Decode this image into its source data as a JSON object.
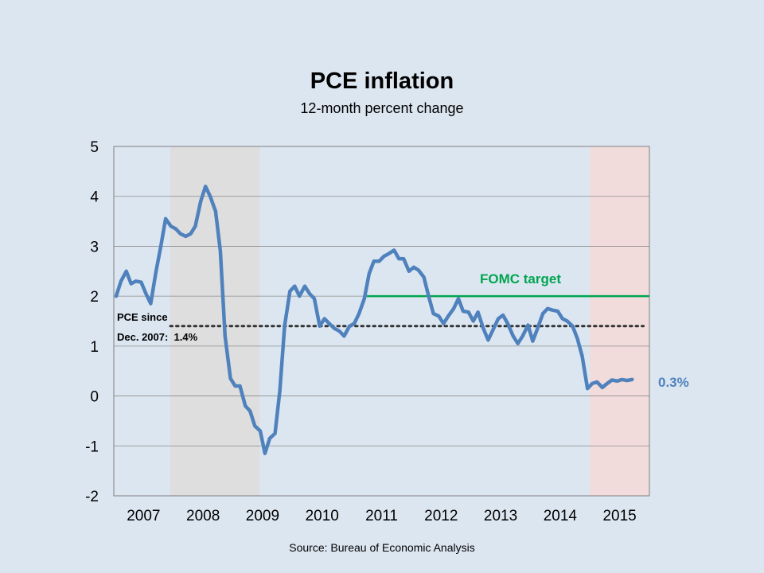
{
  "chart_data": {
    "type": "line",
    "title": "PCE inflation",
    "subtitle": "12-month percent change",
    "source": "Source: Bureau of Economic Analysis",
    "ylim": [
      -2,
      5
    ],
    "yticks": [
      "5",
      "4",
      "3",
      "2",
      "1",
      "0",
      "-1",
      "-2"
    ],
    "ytick_values": [
      5,
      4,
      3,
      2,
      1,
      0,
      -1,
      -2
    ],
    "xlim": [
      2007.0,
      2016.0
    ],
    "year_labels": [
      "2007",
      "2008",
      "2009",
      "2010",
      "2011",
      "2012",
      "2013",
      "2014",
      "2015"
    ],
    "year_values": [
      2007,
      2008,
      2009,
      2010,
      2011,
      2012,
      2013,
      2014,
      2015
    ],
    "grid": true,
    "shaded_regions": [
      {
        "name": "recession",
        "start": 2007.95,
        "end": 2009.45,
        "color": "#dedede"
      },
      {
        "name": "2015",
        "start": 2015.0,
        "end": 2016.0,
        "color": "#f2dcdb"
      }
    ],
    "highlight_year_label": {
      "label": "2015",
      "color": "#c00000"
    },
    "series": [
      {
        "name": "PCE",
        "color": "#4f81bd",
        "x": [
          2007.04,
          2007.12,
          2007.21,
          2007.29,
          2007.37,
          2007.46,
          2007.54,
          2007.62,
          2007.71,
          2007.79,
          2007.87,
          2007.96,
          2008.04,
          2008.12,
          2008.21,
          2008.29,
          2008.37,
          2008.46,
          2008.54,
          2008.62,
          2008.71,
          2008.79,
          2008.87,
          2008.96,
          2009.04,
          2009.12,
          2009.21,
          2009.29,
          2009.37,
          2009.46,
          2009.54,
          2009.62,
          2009.71,
          2009.79,
          2009.87,
          2009.96,
          2010.04,
          2010.12,
          2010.21,
          2010.29,
          2010.37,
          2010.46,
          2010.54,
          2010.62,
          2010.71,
          2010.79,
          2010.87,
          2010.96,
          2011.04,
          2011.12,
          2011.21,
          2011.29,
          2011.37,
          2011.46,
          2011.54,
          2011.62,
          2011.71,
          2011.79,
          2011.87,
          2011.96,
          2012.04,
          2012.12,
          2012.21,
          2012.29,
          2012.37,
          2012.46,
          2012.54,
          2012.62,
          2012.71,
          2012.79,
          2012.87,
          2012.96,
          2013.04,
          2013.12,
          2013.21,
          2013.29,
          2013.37,
          2013.46,
          2013.54,
          2013.62,
          2013.71,
          2013.79,
          2013.87,
          2013.96,
          2014.04,
          2014.12,
          2014.21,
          2014.29,
          2014.37,
          2014.46,
          2014.54,
          2014.62,
          2014.71,
          2014.79,
          2014.87,
          2014.96,
          2015.04,
          2015.12,
          2015.21,
          2015.29,
          2015.37,
          2015.46,
          2015.54,
          2015.62,
          2015.71
        ],
        "values": [
          2.0,
          2.3,
          2.5,
          2.25,
          2.3,
          2.28,
          2.05,
          1.85,
          2.5,
          3.0,
          3.55,
          3.4,
          3.35,
          3.25,
          3.2,
          3.25,
          3.4,
          3.9,
          4.2,
          4.0,
          3.7,
          2.9,
          1.2,
          0.35,
          0.2,
          0.2,
          -0.2,
          -0.3,
          -0.6,
          -0.7,
          -1.15,
          -0.85,
          -0.75,
          0.1,
          1.4,
          2.1,
          2.2,
          2.0,
          2.2,
          2.05,
          1.95,
          1.4,
          1.55,
          1.45,
          1.35,
          1.3,
          1.2,
          1.4,
          1.45,
          1.65,
          1.95,
          2.45,
          2.7,
          2.7,
          2.8,
          2.85,
          2.92,
          2.75,
          2.75,
          2.5,
          2.58,
          2.52,
          2.38,
          2.0,
          1.65,
          1.6,
          1.45,
          1.6,
          1.75,
          1.95,
          1.7,
          1.68,
          1.5,
          1.68,
          1.35,
          1.12,
          1.32,
          1.55,
          1.62,
          1.45,
          1.2,
          1.05,
          1.2,
          1.42,
          1.1,
          1.35,
          1.65,
          1.75,
          1.72,
          1.7,
          1.55,
          1.5,
          1.4,
          1.15,
          0.8,
          0.15,
          0.25,
          0.28,
          0.17,
          0.25,
          0.32,
          0.3,
          0.33,
          0.31,
          0.33
        ]
      }
    ],
    "target": {
      "label": "FOMC target",
      "value": 2.0,
      "start": 2011.25,
      "end": 2016.0,
      "color": "#00a550"
    },
    "average": {
      "label_line1": "PCE since",
      "label_line2": "Dec. 2007:  1.4%",
      "value": 1.4,
      "start": 2007.95,
      "end": 2015.9,
      "color": "#333333"
    },
    "end_label": {
      "text": "0.3%",
      "color": "#4f81bd"
    }
  }
}
